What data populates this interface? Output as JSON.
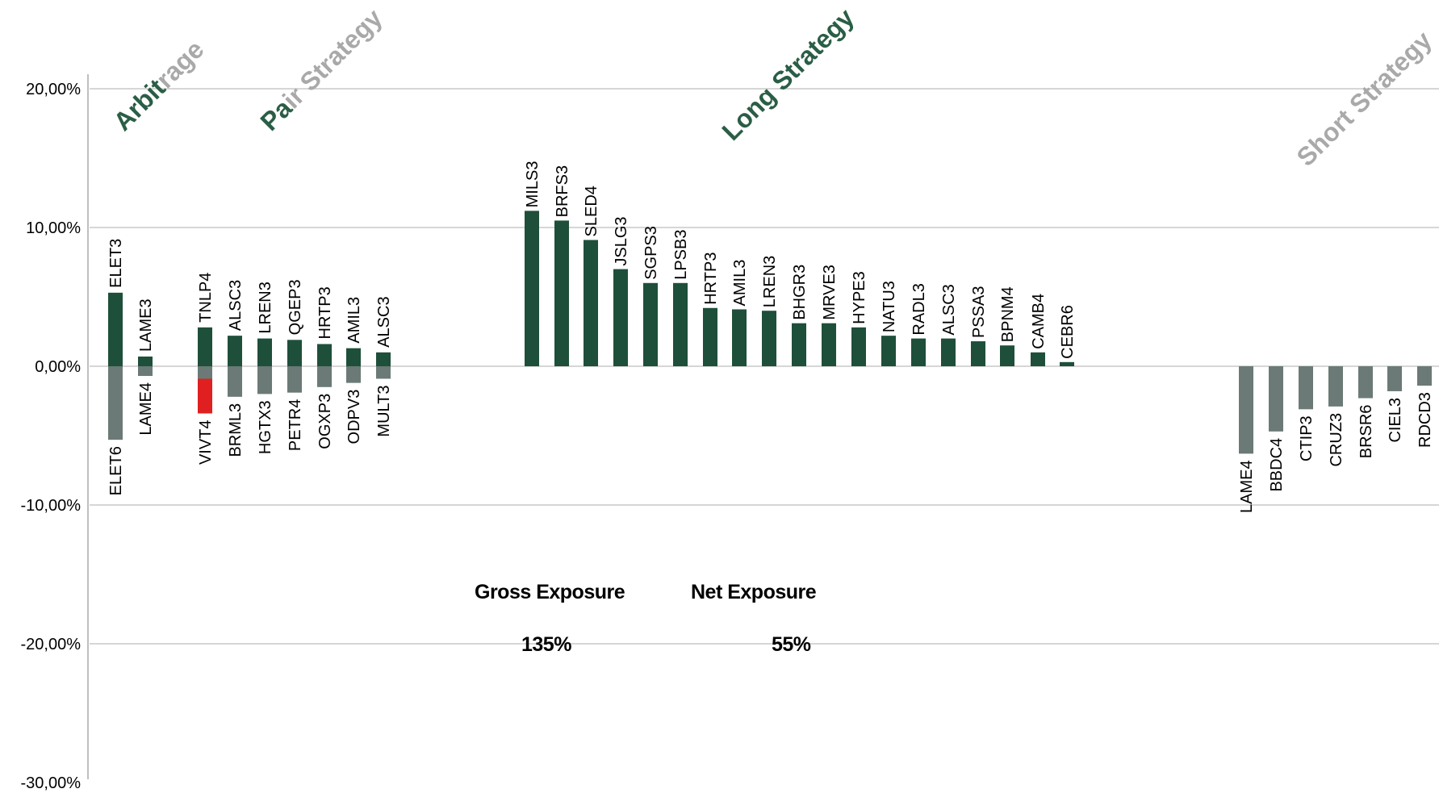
{
  "chart_data": {
    "type": "bar",
    "ylim": [
      -30,
      20
    ],
    "yticks": [
      20,
      10,
      0,
      -10,
      -20,
      -30
    ],
    "ytick_labels": [
      "20,00%",
      "10,00%",
      "0,00%",
      "-10,00%",
      "-20,00%",
      "-30,00%"
    ],
    "grid": true,
    "colors": {
      "long": "#1e4f3a",
      "short": "#6b7a76",
      "highlight": "#e02020",
      "section_green": "#2a5e46",
      "section_grey": "#a9a9a9",
      "grid": "#c8c8c8"
    },
    "sections": [
      {
        "label": "Arbitrage",
        "two_tone": true
      },
      {
        "label": "Pair Strategy",
        "two_tone": true
      },
      {
        "label": "Long Strategy",
        "two_tone": false
      },
      {
        "label": "Short Strategy",
        "two_tone": false
      }
    ],
    "groups": [
      {
        "section": "Arbitrage",
        "pairs": [
          {
            "long": "ELET3",
            "long_value": 5.3,
            "short": "ELET6",
            "short_value": -5.3
          },
          {
            "long": "LAME3",
            "long_value": 0.7,
            "short": "LAME4",
            "short_value": -0.7
          }
        ]
      },
      {
        "section": "Pair Strategy",
        "pairs": [
          {
            "long": "TNLP4",
            "long_value": 2.8,
            "short": "VIVT4",
            "short_value": -3.4,
            "short_highlight_value": -0.9
          },
          {
            "long": "ALSC3",
            "long_value": 2.2,
            "short": "BRML3",
            "short_value": -2.2
          },
          {
            "long": "LREN3",
            "long_value": 2.0,
            "short": "HGTX3",
            "short_value": -2.0
          },
          {
            "long": "QGEP3",
            "long_value": 1.9,
            "short": "PETR4",
            "short_value": -1.9
          },
          {
            "long": "HRTP3",
            "long_value": 1.6,
            "short": "OGXP3",
            "short_value": -1.5
          },
          {
            "long": "AMIL3",
            "long_value": 1.3,
            "short": "ODPV3",
            "short_value": -1.2
          },
          {
            "long": "ALSC3",
            "long_value": 1.0,
            "short": "MULT3",
            "short_value": -0.9
          }
        ]
      },
      {
        "section": "Long Strategy",
        "bars": [
          {
            "name": "MILS3",
            "value": 11.2
          },
          {
            "name": "BRFS3",
            "value": 10.5
          },
          {
            "name": "SLED4",
            "value": 9.1
          },
          {
            "name": "JSLG3",
            "value": 7.0
          },
          {
            "name": "SGPS3",
            "value": 6.0
          },
          {
            "name": "LPSB3",
            "value": 6.0
          },
          {
            "name": "HRTP3",
            "value": 4.2
          },
          {
            "name": "AMIL3",
            "value": 4.1
          },
          {
            "name": "LREN3",
            "value": 4.0
          },
          {
            "name": "BHGR3",
            "value": 3.1
          },
          {
            "name": "MRVE3",
            "value": 3.1
          },
          {
            "name": "HYPE3",
            "value": 2.8
          },
          {
            "name": "NATU3",
            "value": 2.2
          },
          {
            "name": "RADL3",
            "value": 2.0
          },
          {
            "name": "ALSC3",
            "value": 2.0
          },
          {
            "name": "PSSA3",
            "value": 1.8
          },
          {
            "name": "BPNM4",
            "value": 1.5
          },
          {
            "name": "CAMB4",
            "value": 1.0
          },
          {
            "name": "CEBR6",
            "value": 0.3
          }
        ]
      },
      {
        "section": "Short Strategy",
        "bars": [
          {
            "name": "LAME4",
            "value": -6.3
          },
          {
            "name": "BBDC4",
            "value": -4.7
          },
          {
            "name": "CTIP3",
            "value": -3.1
          },
          {
            "name": "CRUZ3",
            "value": -2.9
          },
          {
            "name": "BRSR6",
            "value": -2.3
          },
          {
            "name": "CIEL3",
            "value": -1.8
          },
          {
            "name": "RDCD3",
            "value": -1.4
          }
        ]
      }
    ],
    "annotations": {
      "gross_label": "Gross Exposure",
      "gross_value": "135%",
      "net_label": "Net Exposure",
      "net_value": "55%"
    }
  }
}
